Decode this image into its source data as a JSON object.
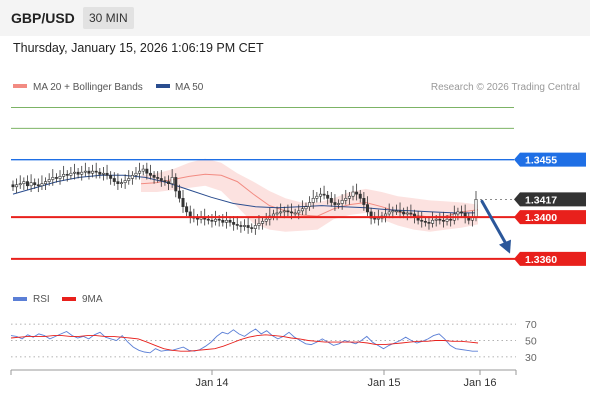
{
  "header": {
    "pair": "GBP/USD",
    "timeframe": "30 MIN"
  },
  "datetime": "Thursday, January 15, 2026 1:06:19 PM CET",
  "credit": "Research © 2026 Trading Central",
  "colors": {
    "bollinger": "#f28b82",
    "ma50": "#2a4d8f",
    "green": "#6aa84f",
    "blue": "#1f6fe5",
    "red": "#e8201c",
    "arrow": "#2b579a",
    "rsi": "#5b7fd6",
    "rsi_ma": "#e8201c",
    "dark": "#333333"
  },
  "chart_data": [
    {
      "type": "candlestick",
      "title": "GBP/USD 30 MIN",
      "ylim": [
        1.3335,
        1.3515
      ],
      "x_ticks": [
        "Jan 14",
        "Jan 15",
        "Jan 16"
      ],
      "legend": [
        {
          "name": "MA 20 + Bollinger Bands",
          "color": "#f28b82"
        },
        {
          "name": "MA 50",
          "color": "#2a4d8f"
        }
      ],
      "close_series": [
        1.3429,
        1.3431,
        1.3432,
        1.3434,
        1.343,
        1.3433,
        1.3431,
        1.343,
        1.3432,
        1.3434,
        1.3436,
        1.3438,
        1.3437,
        1.3439,
        1.3441,
        1.344,
        1.3442,
        1.3443,
        1.3441,
        1.3443,
        1.3444,
        1.3442,
        1.3444,
        1.3443,
        1.3441,
        1.3442,
        1.344,
        1.3437,
        1.3434,
        1.3432,
        1.3433,
        1.3435,
        1.3437,
        1.344,
        1.3442,
        1.3444,
        1.3446,
        1.3442,
        1.344,
        1.3438,
        1.3437,
        1.3435,
        1.3434,
        1.3432,
        1.3438,
        1.3425,
        1.3418,
        1.341,
        1.3405,
        1.34,
        1.3399,
        1.3398,
        1.34,
        1.3398,
        1.3397,
        1.3396,
        1.3398,
        1.3397,
        1.3395,
        1.3397,
        1.3395,
        1.3393,
        1.3392,
        1.3391,
        1.3392,
        1.339,
        1.3389,
        1.3392,
        1.3394,
        1.3396,
        1.3398,
        1.3401,
        1.3403,
        1.3404,
        1.3405,
        1.3406,
        1.3405,
        1.3404,
        1.3404,
        1.3406,
        1.3408,
        1.341,
        1.3414,
        1.3418,
        1.342,
        1.3422,
        1.3421,
        1.3418,
        1.3414,
        1.3412,
        1.3413,
        1.3416,
        1.3418,
        1.342,
        1.3424,
        1.3422,
        1.3418,
        1.3412,
        1.3405,
        1.3399,
        1.3398,
        1.3399,
        1.3401,
        1.3403,
        1.3405,
        1.3406,
        1.3406,
        1.3405,
        1.3403,
        1.3404,
        1.3403,
        1.34,
        1.3397,
        1.3396,
        1.3395,
        1.3394,
        1.3397,
        1.3398,
        1.3397,
        1.3396,
        1.3398,
        1.3397,
        1.3403,
        1.3405,
        1.3404,
        1.34,
        1.3397,
        1.34,
        1.3417
      ],
      "ma20_series": [
        1.3432,
        1.3433,
        1.3436,
        1.3439,
        1.3441,
        1.344,
        1.3434,
        1.3422,
        1.3411,
        1.3406,
        1.3402,
        1.3401,
        1.3408,
        1.3412,
        1.3414,
        1.341,
        1.3405,
        1.3402,
        1.34,
        1.3401,
        1.3405,
        1.3407
      ],
      "bb_upper": [
        1.344,
        1.3442,
        1.3446,
        1.3452,
        1.3456,
        1.3452,
        1.3442,
        1.3434,
        1.3425,
        1.3418,
        1.3414,
        1.3414,
        1.3418,
        1.3424,
        1.3427,
        1.3424,
        1.342,
        1.3418,
        1.3416,
        1.3415,
        1.3414,
        1.3412
      ],
      "bb_lower": [
        1.3424,
        1.3424,
        1.3426,
        1.3428,
        1.343,
        1.3425,
        1.341,
        1.3394,
        1.3388,
        1.3386,
        1.3387,
        1.3388,
        1.3398,
        1.3402,
        1.3404,
        1.3398,
        1.3392,
        1.3388,
        1.3386,
        1.3388,
        1.339,
        1.3393
      ],
      "ma50_series": [
        1.3422,
        1.3428,
        1.3434,
        1.3438,
        1.344,
        1.344,
        1.3438,
        1.3433,
        1.3426,
        1.3419,
        1.3413,
        1.341,
        1.3409,
        1.341,
        1.3411,
        1.341,
        1.3409,
        1.3407,
        1.3406,
        1.3405,
        1.3404,
        1.3404
      ],
      "levels": [
        {
          "value": "1.3505",
          "num": 1.3505,
          "style": "green"
        },
        {
          "value": "1.3485",
          "num": 1.3485,
          "style": "green"
        },
        {
          "value": "1.3455",
          "num": 1.3455,
          "style": "blue"
        },
        {
          "value": "1.3417",
          "num": 1.3417,
          "style": "last"
        },
        {
          "value": "1.3400",
          "num": 1.34,
          "style": "red"
        },
        {
          "value": "1.3360",
          "num": 1.336,
          "style": "red"
        }
      ],
      "forecast_arrow": {
        "from": 1.3417,
        "to": 1.3365,
        "direction": "down"
      }
    },
    {
      "type": "line",
      "title": "RSI",
      "ylim": [
        25,
        75
      ],
      "y_ticks": [
        "70",
        "50",
        "30"
      ],
      "legend": [
        {
          "name": "RSI",
          "color": "#5b7fd6"
        },
        {
          "name": "9MA",
          "color": "#e8201c"
        }
      ],
      "rsi_series": [
        56,
        55,
        52,
        57,
        54,
        58,
        56,
        52,
        55,
        58,
        61,
        56,
        53,
        55,
        52,
        57,
        60,
        54,
        52,
        50,
        56,
        48,
        42,
        38,
        36,
        35,
        40,
        37,
        38,
        38,
        40,
        42,
        38,
        37,
        39,
        43,
        48,
        55,
        60,
        58,
        63,
        58,
        55,
        60,
        64,
        58,
        62,
        56,
        52,
        55,
        60,
        54,
        50,
        46,
        45,
        48,
        52,
        48,
        44,
        46,
        50,
        48,
        46,
        50,
        55,
        48,
        44,
        40,
        44,
        47,
        50,
        54,
        50,
        47,
        49,
        52,
        56,
        58,
        52,
        44,
        40,
        39,
        38,
        37,
        37
      ],
      "ma9_series": [
        53,
        54,
        55,
        55,
        55,
        56,
        56,
        55,
        55,
        56,
        56,
        55,
        55,
        54,
        53,
        52,
        48,
        44,
        40,
        38,
        37,
        37,
        38,
        39,
        40,
        43,
        47,
        51,
        54,
        56,
        57,
        56,
        55,
        53,
        52,
        50,
        49,
        48,
        48,
        48,
        48,
        48,
        47,
        45,
        45,
        46,
        47,
        48,
        49,
        49,
        50,
        50,
        49,
        49,
        48,
        47
      ]
    }
  ]
}
